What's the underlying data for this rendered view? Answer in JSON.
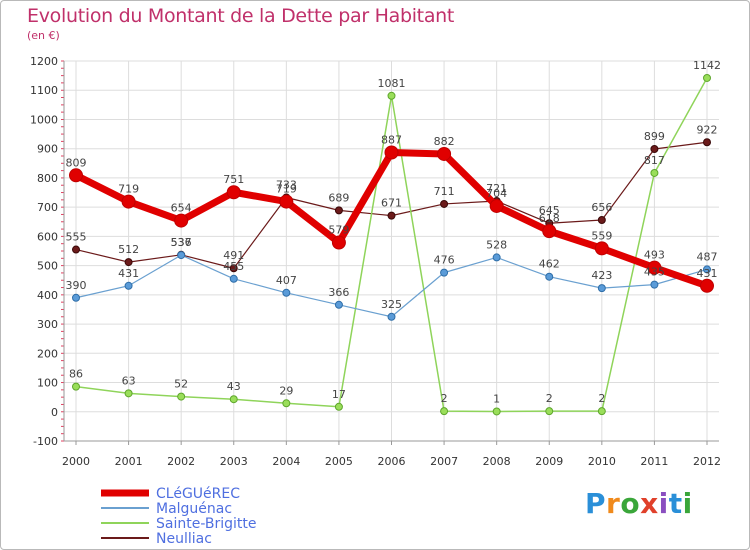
{
  "header": {
    "title": "Evolution du Montant de la Dette par Habitant",
    "subtitle": "(en €)"
  },
  "logo": {
    "letters": [
      "P",
      "r",
      "o",
      "x",
      "i",
      "t",
      "i"
    ],
    "colors": [
      "#2a8fd8",
      "#f08a1c",
      "#3aa63a",
      "#e0402a",
      "#8a4fc0",
      "#2a8fd8",
      "#3aa63a"
    ]
  },
  "chart_data": {
    "type": "line",
    "title": "Evolution du Montant de la Dette par Habitant",
    "subtitle": "(en €)",
    "xlabel": "",
    "ylabel": "",
    "ylim": [
      -100,
      1200
    ],
    "yticks": [
      -100,
      0,
      100,
      200,
      300,
      400,
      500,
      600,
      700,
      800,
      900,
      1000,
      1100,
      1200
    ],
    "categories": [
      "2000",
      "2001",
      "2002",
      "2003",
      "2004",
      "2005",
      "2006",
      "2007",
      "2008",
      "2009",
      "2010",
      "2011",
      "2012"
    ],
    "grid": true,
    "legend_position": "bottom-left",
    "series": [
      {
        "name": "Neulliac",
        "color": "#6b1a1a",
        "values": [
          555,
          512,
          537,
          491,
          733,
          689,
          671,
          711,
          721,
          645,
          656,
          899,
          922
        ],
        "labels": [
          "555",
          "512",
          "537",
          "491",
          "733",
          "689",
          "671",
          "711",
          "721",
          "645",
          "656",
          "899",
          "922"
        ]
      },
      {
        "name": "Sainte-Brigitte",
        "color": "#8fd45a",
        "values": [
          86,
          63,
          52,
          43,
          29,
          17,
          1081,
          2,
          1,
          2,
          2,
          817,
          1142
        ],
        "labels": [
          "86",
          "63",
          "52",
          "43",
          "29",
          "17",
          "1081",
          "2",
          "1",
          "2",
          "2",
          "817",
          "1142"
        ]
      },
      {
        "name": "Malguénac",
        "color": "#6aa0d0",
        "values": [
          390,
          431,
          536,
          455,
          407,
          366,
          325,
          476,
          528,
          462,
          423,
          435,
          487
        ],
        "labels": [
          "390",
          "431",
          "536",
          "455",
          "407",
          "366",
          "325",
          "476",
          "528",
          "462",
          "423",
          "435",
          "487"
        ]
      },
      {
        "name": "CLéGUéREC",
        "color": "#e00000",
        "values": [
          809,
          719,
          654,
          751,
          719,
          579,
          887,
          882,
          704,
          618,
          559,
          493,
          431
        ],
        "labels": [
          "809",
          "719",
          "654",
          "751",
          "719",
          "579",
          "887",
          "882",
          "704",
          "618",
          "559",
          "493",
          "431"
        ]
      }
    ],
    "legend_order": [
      "CLéGUéREC",
      "Malguénac",
      "Sainte-Brigitte",
      "Neulliac"
    ]
  }
}
